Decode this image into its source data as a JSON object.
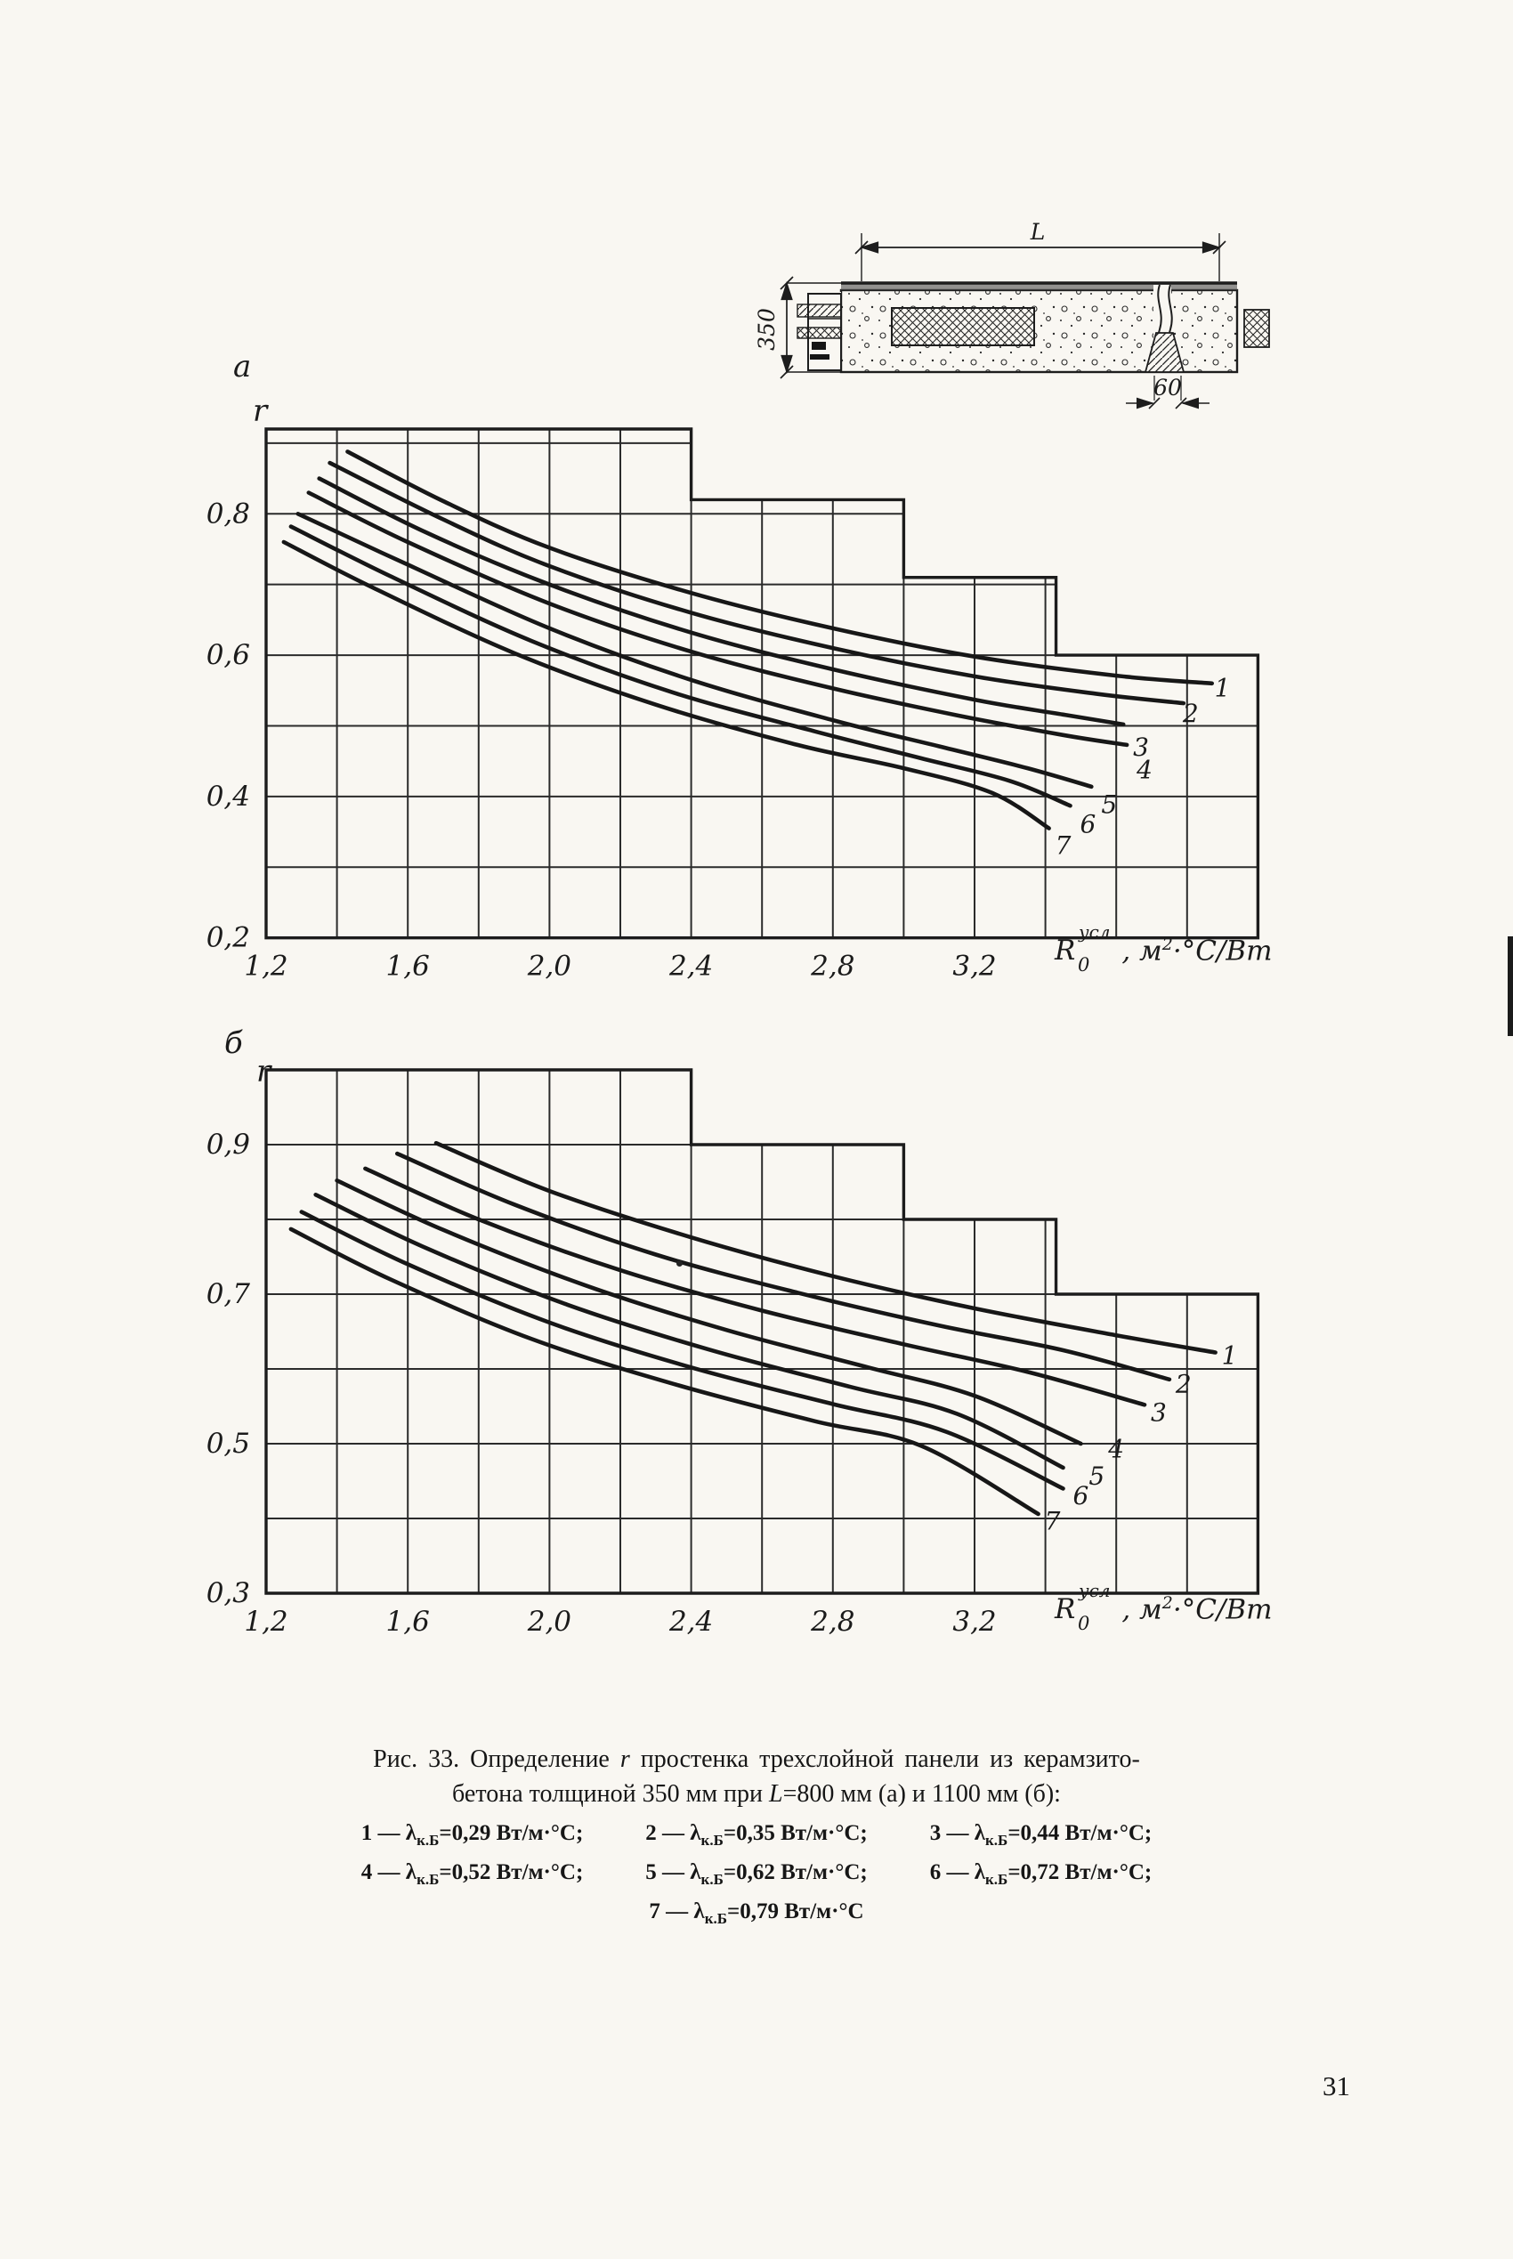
{
  "page_number": "31",
  "drawing": {
    "dim_top": "L",
    "dim_left": "350",
    "dim_bottom": "60"
  },
  "figure": {
    "caption": {
      "line1_pre": "Рис. 33. Определение ",
      "line1_it": "r",
      "line1_post": " простенка трехслойной панели из керамзито-",
      "line2_pre": "бетона толщиной 350 мм при ",
      "line2_it": "L",
      "line2_post": "=800 мм (а) и 1100 мм (б):"
    },
    "legend": {
      "rows": [
        [
          {
            "pre": "1 — λ",
            "sub": "к.Б",
            "post": "=0,29 Вт/м·°С;"
          },
          {
            "pre": "2 — λ",
            "sub": "к.Б",
            "post": "=0,35 Вт/м·°С;"
          },
          {
            "pre": "3 — λ",
            "sub": "к.Б",
            "post": "=0,44 Вт/м·°С;"
          }
        ],
        [
          {
            "pre": "4 — λ",
            "sub": "к.Б",
            "post": "=0,52 Вт/м·°С;"
          },
          {
            "pre": "5 — λ",
            "sub": "к.Б",
            "post": "=0,62 Вт/м·°С;"
          },
          {
            "pre": "6 — λ",
            "sub": "к.Б",
            "post": "=0,72 Вт/м·°С;"
          }
        ],
        [
          {
            "pre": "7 — λ",
            "sub": "к.Б",
            "post": "=0,79 Вт/м·°С"
          }
        ]
      ]
    }
  },
  "chart_data": [
    {
      "type": "line",
      "panel_label": "а",
      "y_symbol": "r",
      "title": "r простенка трехслойной панели, L=800 мм",
      "x_axis": {
        "min": 1.2,
        "max": 4.0,
        "grid_step": 0.2,
        "ticks": [
          {
            "v": 1.2,
            "t": "1,2"
          },
          {
            "v": 1.6,
            "t": "1,6"
          },
          {
            "v": 2.0,
            "t": "2,0"
          },
          {
            "v": 2.4,
            "t": "2,4"
          },
          {
            "v": 2.8,
            "t": "2,8"
          },
          {
            "v": 3.2,
            "t": "3,2"
          }
        ]
      },
      "y_axis": {
        "min": 0.2,
        "grid_step": 0.1,
        "grid_max": 0.9,
        "border_top": 0.92,
        "ticks": [
          {
            "v": 0.8,
            "t": "0,8"
          },
          {
            "v": 0.6,
            "t": "0,6"
          },
          {
            "v": 0.4,
            "t": "0,4"
          },
          {
            "v": 0.2,
            "t": "0,2"
          }
        ]
      },
      "boundary_steps": [
        {
          "x_to": 2.4,
          "top": 0.92
        },
        {
          "x_to": 3.0,
          "top": 0.82
        },
        {
          "x_to": 3.43,
          "top": 0.71
        },
        {
          "x_to": 4.0,
          "top": 0.6
        }
      ],
      "x_axis_title": {
        "sym": "R",
        "sub": "0",
        "sup": "усл",
        "rest_pre": ", м",
        "rest_sup": "2",
        "rest_post": "·°С/Вт"
      },
      "series": [
        {
          "label": "1",
          "label_pos": [
            3.9,
            0.553
          ],
          "points": [
            [
              1.43,
              0.888
            ],
            [
              1.7,
              0.818
            ],
            [
              2.0,
              0.752
            ],
            [
              2.4,
              0.688
            ],
            [
              2.8,
              0.638
            ],
            [
              3.2,
              0.598
            ],
            [
              3.6,
              0.571
            ],
            [
              3.87,
              0.56
            ]
          ]
        },
        {
          "label": "2",
          "label_pos": [
            3.81,
            0.517
          ],
          "points": [
            [
              1.38,
              0.872
            ],
            [
              1.7,
              0.792
            ],
            [
              2.0,
              0.726
            ],
            [
              2.4,
              0.66
            ],
            [
              2.8,
              0.61
            ],
            [
              3.2,
              0.57
            ],
            [
              3.55,
              0.545
            ],
            [
              3.79,
              0.532
            ]
          ]
        },
        {
          "label": "3",
          "label_pos": [
            3.67,
            0.469
          ],
          "points": [
            [
              1.35,
              0.85
            ],
            [
              1.65,
              0.774
            ],
            [
              2.0,
              0.7
            ],
            [
              2.4,
              0.632
            ],
            [
              2.8,
              0.58
            ],
            [
              3.2,
              0.537
            ],
            [
              3.45,
              0.516
            ],
            [
              3.62,
              0.502
            ]
          ]
        },
        {
          "label": "4",
          "label_pos": [
            3.68,
            0.437
          ],
          "points": [
            [
              1.32,
              0.83
            ],
            [
              1.6,
              0.76
            ],
            [
              2.0,
              0.673
            ],
            [
              2.4,
              0.605
            ],
            [
              2.8,
              0.553
            ],
            [
              3.15,
              0.515
            ],
            [
              3.45,
              0.487
            ],
            [
              3.63,
              0.473
            ]
          ]
        },
        {
          "label": "5",
          "label_pos": [
            3.58,
            0.388
          ],
          "points": [
            [
              1.29,
              0.8
            ],
            [
              1.6,
              0.728
            ],
            [
              2.0,
              0.638
            ],
            [
              2.4,
              0.565
            ],
            [
              2.8,
              0.508
            ],
            [
              3.1,
              0.471
            ],
            [
              3.35,
              0.44
            ],
            [
              3.53,
              0.414
            ]
          ]
        },
        {
          "label": "6",
          "label_pos": [
            3.52,
            0.36
          ],
          "points": [
            [
              1.27,
              0.782
            ],
            [
              1.55,
              0.712
            ],
            [
              1.95,
              0.62
            ],
            [
              2.35,
              0.547
            ],
            [
              2.75,
              0.492
            ],
            [
              3.05,
              0.454
            ],
            [
              3.3,
              0.422
            ],
            [
              3.47,
              0.387
            ]
          ]
        },
        {
          "label": "7",
          "label_pos": [
            3.45,
            0.33
          ],
          "points": [
            [
              1.25,
              0.76
            ],
            [
              1.5,
              0.696
            ],
            [
              1.9,
              0.603
            ],
            [
              2.3,
              0.53
            ],
            [
              2.7,
              0.473
            ],
            [
              3.0,
              0.44
            ],
            [
              3.25,
              0.405
            ],
            [
              3.41,
              0.355
            ]
          ]
        }
      ]
    },
    {
      "type": "line",
      "panel_label": "б",
      "y_symbol": "r",
      "title": "r простенка трехслойной панели, L=1100 мм",
      "x_axis": {
        "min": 1.2,
        "max": 4.0,
        "grid_step": 0.2,
        "ticks": [
          {
            "v": 1.2,
            "t": "1,2"
          },
          {
            "v": 1.6,
            "t": "1,6"
          },
          {
            "v": 2.0,
            "t": "2,0"
          },
          {
            "v": 2.4,
            "t": "2,4"
          },
          {
            "v": 2.8,
            "t": "2,8"
          },
          {
            "v": 3.2,
            "t": "3,2"
          }
        ]
      },
      "y_axis": {
        "min": 0.3,
        "grid_step": 0.1,
        "grid_max": 0.9,
        "border_top": 1.0,
        "ticks": [
          {
            "v": 0.9,
            "t": "0,9"
          },
          {
            "v": 0.7,
            "t": "0,7"
          },
          {
            "v": 0.5,
            "t": "0,5"
          },
          {
            "v": 0.3,
            "t": "0,3"
          }
        ]
      },
      "boundary_steps": [
        {
          "x_to": 2.4,
          "top": 1.0
        },
        {
          "x_to": 3.0,
          "top": 0.9
        },
        {
          "x_to": 3.43,
          "top": 0.8
        },
        {
          "x_to": 4.0,
          "top": 0.7
        }
      ],
      "x_axis_title": {
        "sym": "R",
        "sub": "0",
        "sup": "усл",
        "rest_pre": ", м",
        "rest_sup": "2",
        "rest_post": "·°С/Вт"
      },
      "series": [
        {
          "label": "1",
          "label_pos": [
            3.92,
            0.617
          ],
          "points": [
            [
              1.68,
              0.902
            ],
            [
              2.0,
              0.838
            ],
            [
              2.4,
              0.776
            ],
            [
              2.8,
              0.724
            ],
            [
              3.2,
              0.681
            ],
            [
              3.6,
              0.645
            ],
            [
              3.88,
              0.622
            ]
          ]
        },
        {
          "label": "2",
          "label_pos": [
            3.79,
            0.579
          ],
          "points": [
            [
              1.57,
              0.888
            ],
            [
              1.9,
              0.82
            ],
            [
              2.3,
              0.753
            ],
            [
              2.7,
              0.702
            ],
            [
              3.1,
              0.658
            ],
            [
              3.45,
              0.625
            ],
            [
              3.75,
              0.586
            ]
          ]
        },
        {
          "label": "3",
          "label_pos": [
            3.72,
            0.541
          ],
          "points": [
            [
              1.48,
              0.868
            ],
            [
              1.8,
              0.8
            ],
            [
              2.2,
              0.732
            ],
            [
              2.6,
              0.678
            ],
            [
              3.0,
              0.633
            ],
            [
              3.35,
              0.596
            ],
            [
              3.68,
              0.552
            ]
          ]
        },
        {
          "label": "4",
          "label_pos": [
            3.6,
            0.492
          ],
          "points": [
            [
              1.4,
              0.852
            ],
            [
              1.7,
              0.786
            ],
            [
              2.1,
              0.712
            ],
            [
              2.5,
              0.652
            ],
            [
              2.9,
              0.602
            ],
            [
              3.2,
              0.564
            ],
            [
              3.5,
              0.5
            ]
          ]
        },
        {
          "label": "5",
          "label_pos": [
            3.545,
            0.456
          ],
          "points": [
            [
              1.34,
              0.833
            ],
            [
              1.65,
              0.762
            ],
            [
              2.05,
              0.686
            ],
            [
              2.45,
              0.626
            ],
            [
              2.85,
              0.576
            ],
            [
              3.15,
              0.54
            ],
            [
              3.45,
              0.468
            ]
          ]
        },
        {
          "label": "6",
          "label_pos": [
            3.5,
            0.43
          ],
          "points": [
            [
              1.3,
              0.81
            ],
            [
              1.6,
              0.74
            ],
            [
              2.0,
              0.662
            ],
            [
              2.4,
              0.602
            ],
            [
              2.8,
              0.553
            ],
            [
              3.12,
              0.516
            ],
            [
              3.45,
              0.44
            ]
          ]
        },
        {
          "label": "7",
          "label_pos": [
            3.42,
            0.396
          ],
          "points": [
            [
              1.27,
              0.787
            ],
            [
              1.55,
              0.72
            ],
            [
              1.95,
              0.64
            ],
            [
              2.35,
              0.58
            ],
            [
              2.75,
              0.53
            ],
            [
              3.05,
              0.497
            ],
            [
              3.38,
              0.406
            ]
          ]
        }
      ]
    }
  ]
}
